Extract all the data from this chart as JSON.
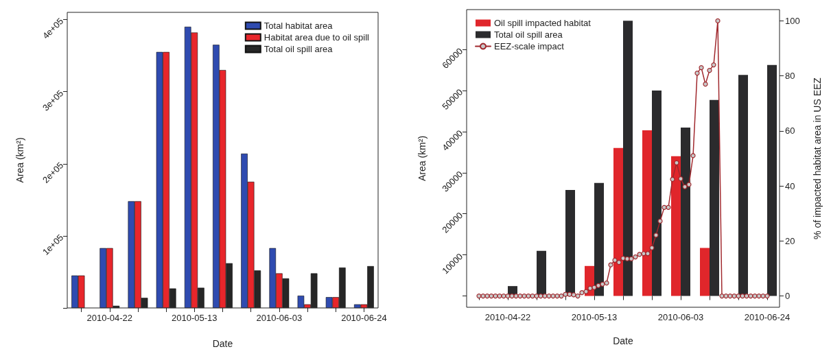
{
  "chart_data": [
    {
      "type": "bar",
      "xlabel": "Date",
      "ylabel": "Area (km²)",
      "legend": "top right",
      "grid": false,
      "categories": [
        null,
        "2010-04-22",
        null,
        null,
        "2010-05-13",
        null,
        null,
        "2010-06-03",
        null,
        null,
        "2010-06-24"
      ],
      "ylim": [
        0,
        410000
      ],
      "yticks": [
        {
          "value": 0,
          "label": null
        },
        {
          "value": 100000,
          "label": "1e+05"
        },
        {
          "value": 200000,
          "label": "2e+05"
        },
        {
          "value": 300000,
          "label": "3e+05"
        },
        {
          "value": 400000,
          "label": "4e+05"
        }
      ],
      "series": [
        {
          "name": "Total habitat area",
          "color": "#2f4bb0",
          "values": [
            45000,
            83000,
            148000,
            355000,
            390000,
            365000,
            214000,
            83000,
            17000,
            15000,
            5000
          ]
        },
        {
          "name": "Habitat area due to oil spill",
          "color": "#e8262b",
          "values": [
            45000,
            83000,
            148000,
            355000,
            382000,
            330000,
            175000,
            48000,
            5000,
            15000,
            5000
          ]
        },
        {
          "name": "Total oil spill area",
          "color": "#262626",
          "values": [
            0,
            3000,
            14000,
            27000,
            28000,
            62000,
            52000,
            41000,
            48000,
            56000,
            58000
          ]
        }
      ]
    },
    {
      "type": "bar",
      "xlabel": "Date",
      "ylabel": "Area (km²)",
      "y2label": "% of impacted habitat area in US EEZ",
      "legend": "top left",
      "grid": false,
      "marker": "circle",
      "x": [
        "2010-04-15",
        "2010-04-22",
        "2010-04-29",
        "2010-05-06",
        "2010-05-13",
        "2010-05-20",
        "2010-05-27",
        "2010-06-03",
        "2010-06-10",
        "2010-06-17",
        "2010-06-24"
      ],
      "xlim": [
        "2010-04-12",
        "2010-06-27"
      ],
      "xticks": [
        {
          "value": "2010-04-15",
          "label": null
        },
        "2010-04-22",
        {
          "value": "2010-04-29",
          "label": null
        },
        {
          "value": "2010-05-06",
          "label": null
        },
        "2010-05-13",
        {
          "value": "2010-05-20",
          "label": null
        },
        {
          "value": "2010-05-27",
          "label": null
        },
        "2010-06-03",
        {
          "value": "2010-06-10",
          "label": null
        },
        {
          "value": "2010-06-17",
          "label": null
        },
        "2010-06-24"
      ],
      "ylim": [
        -2750,
        69700
      ],
      "yticks": [
        {
          "value": 0,
          "label": null
        },
        10000,
        20000,
        30000,
        40000,
        50000,
        60000
      ],
      "y2lim": [
        -4.1,
        104.1
      ],
      "y2ticks": [
        0,
        20,
        40,
        60,
        80,
        100
      ],
      "series": [
        {
          "name": "Oil spill impacted habitat",
          "color": "#e0262b",
          "values": [
            0,
            0,
            0,
            0,
            7300,
            36000,
            40300,
            34000,
            11700,
            0,
            0
          ]
        },
        {
          "name": "Total oil spill area",
          "color": "#2b2b2d",
          "values": [
            0,
            2400,
            11000,
            25800,
            27500,
            67000,
            50000,
            41000,
            47700,
            53800,
            56200
          ]
        },
        {
          "name": "EEZ-scale impact",
          "type": "line",
          "axis": "y2",
          "color": "#a0282d",
          "x": [
            "2010-04-15",
            "2010-04-16",
            "2010-04-17",
            "2010-04-18",
            "2010-04-19",
            "2010-04-20",
            "2010-04-21",
            "2010-04-22",
            "2010-04-23",
            "2010-04-24",
            "2010-04-25",
            "2010-04-26",
            "2010-04-27",
            "2010-04-28",
            "2010-04-29",
            "2010-04-30",
            "2010-05-01",
            "2010-05-02",
            "2010-05-03",
            "2010-05-04",
            "2010-05-05",
            "2010-05-06",
            "2010-05-07",
            "2010-05-08",
            "2010-05-09",
            "2010-05-10",
            "2010-05-11",
            "2010-05-12",
            "2010-05-13",
            "2010-05-14",
            "2010-05-15",
            "2010-05-16",
            "2010-05-17",
            "2010-05-18",
            "2010-05-19",
            "2010-05-20",
            "2010-05-21",
            "2010-05-22",
            "2010-05-23",
            "2010-05-24",
            "2010-05-25",
            "2010-05-26",
            "2010-05-27",
            "2010-05-28",
            "2010-05-29",
            "2010-05-30",
            "2010-05-31",
            "2010-06-01",
            "2010-06-02",
            "2010-06-03",
            "2010-06-04",
            "2010-06-05",
            "2010-06-06",
            "2010-06-07",
            "2010-06-08",
            "2010-06-09",
            "2010-06-10",
            "2010-06-11",
            "2010-06-12",
            "2010-06-13",
            "2010-06-14",
            "2010-06-15",
            "2010-06-16",
            "2010-06-17",
            "2010-06-18",
            "2010-06-19",
            "2010-06-20",
            "2010-06-21",
            "2010-06-22",
            "2010-06-23",
            "2010-06-24"
          ],
          "values": [
            0,
            0,
            0,
            0,
            0,
            0,
            0,
            0,
            0,
            0,
            0,
            0,
            0,
            0,
            0,
            0,
            0,
            0,
            0,
            0,
            0,
            0.6,
            0.6,
            0.4,
            0,
            1.2,
            1.6,
            2.8,
            3.1,
            3.8,
            4.3,
            4.7,
            11.3,
            13,
            12.2,
            13.7,
            13.5,
            13.5,
            14.2,
            15.1,
            15.4,
            15.4,
            17.5,
            22.1,
            27.2,
            32.2,
            32.2,
            42.4,
            48.4,
            42.6,
            39.7,
            40.5,
            51,
            81,
            83,
            77,
            82,
            84,
            100,
            0,
            0,
            0,
            0,
            0,
            0,
            0,
            0,
            0,
            0,
            0,
            0
          ]
        }
      ]
    }
  ]
}
